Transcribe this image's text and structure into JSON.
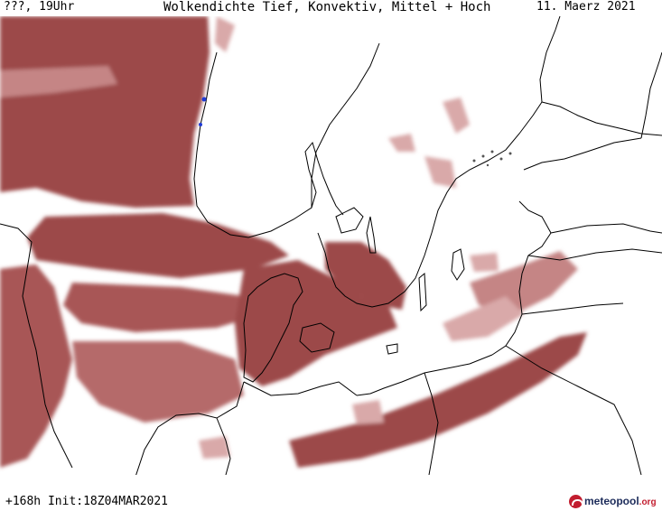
{
  "header": {
    "left_label": "???, 19Uhr",
    "title": "Wolkendichte  Tief, Konvektiv, Mittel + Hoch",
    "date": "11. Maerz 2021"
  },
  "footer": {
    "init_label": "+168h  Init:18Z04MAR2021"
  },
  "logo": {
    "name": "meteopool",
    "suffix": ".org"
  },
  "colors": {
    "cloud_dense": "#9c4a4a",
    "cloud_medium": "#b56a6a",
    "cloud_light": "#d9a9a9",
    "background": "#ffffff",
    "coastline": "#000000",
    "logo_red": "#c21d2f",
    "logo_navy": "#1c2b5a"
  }
}
